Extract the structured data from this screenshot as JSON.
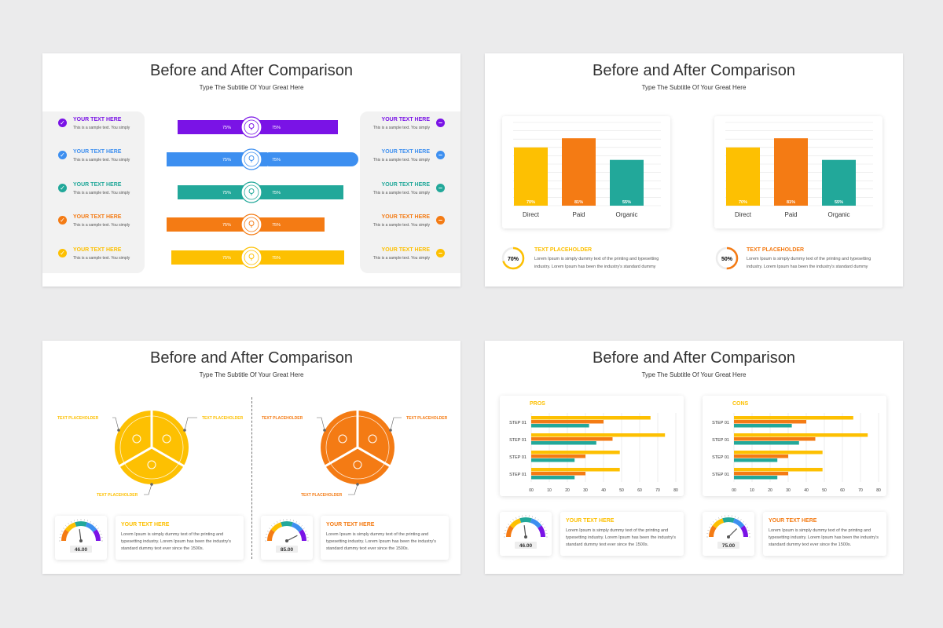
{
  "colors": {
    "purple": "#7a13e6",
    "blue": "#3d8ff0",
    "teal": "#22a89a",
    "orange": "#f47b14",
    "yellow": "#fdc002"
  },
  "slide_title": "Before and After Comparison",
  "slide_subtitle": "Type The Subtitle Of Your Great Here",
  "slide1": {
    "left_items": [
      {
        "title": "YOUR TEXT HERE",
        "text": "This is a sample text. You simply",
        "color": "#7a13e6",
        "icon": "check-icon"
      },
      {
        "title": "YOUR TEXT HERE",
        "text": "This is a sample text. You simply",
        "color": "#3d8ff0",
        "icon": "check-icon"
      },
      {
        "title": "YOUR TEXT HERE",
        "text": "This is a sample text. You simply",
        "color": "#22a89a",
        "icon": "check-icon"
      },
      {
        "title": "YOUR TEXT HERE",
        "text": "This is a sample text. You simply",
        "color": "#f47b14",
        "icon": "check-icon"
      },
      {
        "title": "YOUR TEXT HERE",
        "text": "This is a sample text. You simply",
        "color": "#fdc002",
        "icon": "check-icon"
      }
    ],
    "right_items": [
      {
        "title": "YOUR TEXT HERE",
        "text": "This is a sample text. You simply",
        "color": "#7a13e6",
        "icon": "minus-icon"
      },
      {
        "title": "YOUR TEXT HERE",
        "text": "This is a sample text. You simply",
        "color": "#3d8ff0",
        "icon": "minus-icon"
      },
      {
        "title": "YOUR TEXT HERE",
        "text": "This is a sample text. You simply",
        "color": "#22a89a",
        "icon": "minus-icon"
      },
      {
        "title": "YOUR TEXT HERE",
        "text": "This is a sample text. You simply",
        "color": "#f47b14",
        "icon": "minus-icon"
      },
      {
        "title": "YOUR TEXT HERE",
        "text": "This is a sample text. You simply",
        "color": "#fdc002",
        "icon": "minus-icon"
      }
    ],
    "bars": [
      {
        "left_label": "75%",
        "right_label": "75%",
        "color": "#7a13e6",
        "icon": "lightbulb-icon"
      },
      {
        "left_label": "75%",
        "right_label": "75%",
        "color": "#3d8ff0",
        "icon": "brain-icon"
      },
      {
        "left_label": "75%",
        "right_label": "75%",
        "color": "#22a89a",
        "icon": "stopwatch-icon"
      },
      {
        "left_label": "75%",
        "right_label": "75%",
        "color": "#f47b14",
        "icon": "trophy-icon"
      },
      {
        "left_label": "75%",
        "right_label": "75%",
        "color": "#fdc002",
        "icon": "megaphone-icon"
      }
    ]
  },
  "slide2": {
    "panels": [
      {
        "percent_text": "70%",
        "percent": 0.7,
        "color": "#fdc002",
        "title": "TEXT PLACEHOLDER",
        "line1": "Lorem Ipsum is simply dummy text of the printing and typesetting",
        "line2": "industry. Lorem Ipsum has been the industry's standard dummy"
      },
      {
        "percent_text": "50%",
        "percent": 0.5,
        "color": "#f47b14",
        "title": "TEXT PLACEHOLDER",
        "line1": "Lorem Ipsum is simply dummy text of the printing and typesetting",
        "line2": "industry. Lorem Ipsum has been the industry's standard dummy"
      }
    ]
  },
  "slide3": {
    "wheels": [
      {
        "color": "#fdc002",
        "labels": [
          "TEXT PLACEHOLDER",
          "TEXT PLACEHOLDER",
          "TEXT PLACEHOLDER"
        ],
        "icons": [
          "trophy-icon",
          "rocket-icon",
          "gear-icon"
        ]
      },
      {
        "color": "#f47b14",
        "labels": [
          "TEXT PLACEHOLDER",
          "TEXT PLACEHOLDER",
          "TEXT PLACEHOLDER"
        ],
        "icons": [
          "stopwatch-icon",
          "gear-icon",
          "megaphone-icon"
        ]
      }
    ],
    "cards": [
      {
        "gauge_value": "46.00",
        "title": "YOUR TEXT HERE",
        "line1": "Lorem Ipsum is simply dummy text of the printing and",
        "line2": "typesetting industry. Lorem Ipsum has been the industry's",
        "line3": "standard dummy text ever since the 1500s."
      },
      {
        "gauge_value": "85.00",
        "title": "YOUR TEXT HERE",
        "line1": "Lorem Ipsum is simply dummy text of the printing and",
        "line2": "typesetting industry. Lorem Ipsum has been the industry's",
        "line3": "standard dummy text ever since the 1500s."
      }
    ]
  },
  "slide4": {
    "cards": [
      {
        "gauge_value": "46.00",
        "title": "YOUR TEXT HERE",
        "line1": "Lorem Ipsum is simply dummy text of the printing and",
        "line2": "typesetting industry. Lorem Ipsum has been the industry's",
        "line3": "standard dummy text ever since the 1500s."
      },
      {
        "gauge_value": "75.00",
        "title": "YOUR TEXT HERE",
        "line1": "Lorem Ipsum is simply dummy text of the printing and",
        "line2": "typesetting industry. Lorem Ipsum has been the industry's",
        "line3": "standard dummy text ever since the 1500s."
      }
    ]
  },
  "chart_data": [
    {
      "type": "bar",
      "categories": [
        "Direct",
        "Paid",
        "Organic"
      ],
      "values": [
        70,
        81,
        55
      ],
      "labels": [
        "70%",
        "81%",
        "55%"
      ],
      "colors": [
        "#fdc002",
        "#f47b14",
        "#22a89a"
      ],
      "ylim": [
        0,
        100
      ],
      "grid": true
    },
    {
      "type": "bar",
      "categories": [
        "Direct",
        "Paid",
        "Organic"
      ],
      "values": [
        70,
        81,
        55
      ],
      "labels": [
        "70%",
        "81%",
        "55%"
      ],
      "colors": [
        "#fdc002",
        "#f47b14",
        "#22a89a"
      ],
      "ylim": [
        0,
        100
      ],
      "grid": true
    },
    {
      "type": "bar",
      "orientation": "horizontal",
      "title": "PROS",
      "categories": [
        "STEP 01",
        "STEP 01",
        "STEP 01",
        "STEP 01"
      ],
      "series": [
        {
          "color": "#fdc002",
          "values": [
            66,
            74,
            49,
            49
          ]
        },
        {
          "color": "#f47b14",
          "values": [
            40,
            45,
            30,
            30
          ]
        },
        {
          "color": "#22a89a",
          "values": [
            32,
            36,
            24,
            24
          ]
        }
      ],
      "xticks": [
        "00",
        "10",
        "20",
        "30",
        "40",
        "50",
        "60",
        "70",
        "80"
      ],
      "xlim": [
        0,
        80
      ],
      "grid": true
    },
    {
      "type": "bar",
      "orientation": "horizontal",
      "title": "CONS",
      "categories": [
        "STEP 01",
        "STEP 01",
        "STEP 01",
        "STEP 01"
      ],
      "series": [
        {
          "color": "#fdc002",
          "values": [
            66,
            74,
            49,
            49
          ]
        },
        {
          "color": "#f47b14",
          "values": [
            40,
            45,
            30,
            30
          ]
        },
        {
          "color": "#22a89a",
          "values": [
            32,
            36,
            24,
            24
          ]
        }
      ],
      "xticks": [
        "00",
        "10",
        "20",
        "30",
        "40",
        "50",
        "60",
        "70",
        "80"
      ],
      "xlim": [
        0,
        80
      ],
      "grid": true
    }
  ]
}
